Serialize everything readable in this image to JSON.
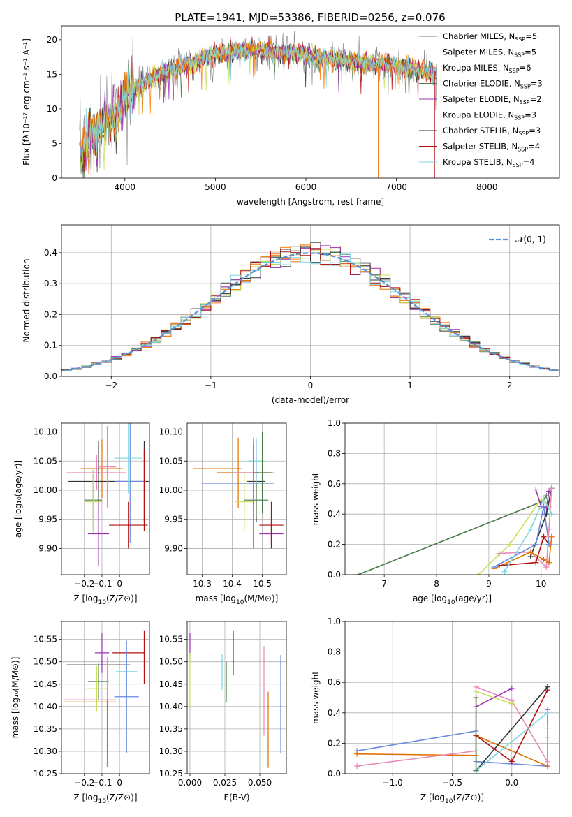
{
  "figure": {
    "title": "PLATE=1941, MJD=53386, FIBERID=0256, z=0.076"
  },
  "series_colors": [
    "#777777",
    "#ff7f0e",
    "#e07000",
    "#4a7a4a",
    "#9b30b0",
    "#c8e05a",
    "#333333",
    "#b01010",
    "#7fd6e0",
    "#6a8ae0",
    "#e98ab8"
  ],
  "chart_data": [
    {
      "id": "spectrum",
      "type": "line",
      "xlabel": "wavelength [Angstrom, rest frame]",
      "ylabel": "Flux [fλ10⁻¹⁷ erg cm⁻² s⁻¹ A⁻¹]",
      "xlim": [
        3300,
        8800
      ],
      "ylim": [
        0,
        22
      ],
      "xticks": [
        4000,
        5000,
        6000,
        7000,
        8000
      ],
      "yticks": [
        0,
        5,
        10,
        15,
        20
      ],
      "legend_position": "top-right",
      "series": [
        {
          "name": "Chabrier MILES, N_SSP=5",
          "label_main": "Chabrier MILES, N",
          "label_tail": "=5",
          "color": "#777777"
        },
        {
          "name": "Salpeter MILES, N_SSP=5",
          "label_main": "Salpeter MILES, N",
          "label_tail": "=5",
          "color": "#ff7f0e"
        },
        {
          "name": "Kroupa MILES, N_SSP=6",
          "label_main": "Kroupa MILES, N",
          "label_tail": "=6",
          "color": "#e07000"
        },
        {
          "name": "Chabrier ELODIE, N_SSP=3",
          "label_main": "Chabrier ELODIE, N",
          "label_tail": "=3",
          "color": "#4a7a4a"
        },
        {
          "name": "Salpeter ELODIE, N_SSP=2",
          "label_main": "Salpeter ELODIE, N",
          "label_tail": "=2",
          "color": "#9b30b0"
        },
        {
          "name": "Kroupa ELODIE, N_SSP=3",
          "label_main": "Kroupa ELODIE, N",
          "label_tail": "=3",
          "color": "#c8e05a"
        },
        {
          "name": "Chabrier STELIB, N_SSP=3",
          "label_main": "Chabrier STELIB, N",
          "label_tail": "=3",
          "color": "#333333"
        },
        {
          "name": "Salpeter STELIB, N_SSP=4",
          "label_main": "Salpeter STELIB, N",
          "label_tail": "=4",
          "color": "#b01010"
        },
        {
          "name": "Kroupa STELIB, N_SSP=4",
          "label_main": "Kroupa STELIB, N",
          "label_tail": "=4",
          "color": "#7fd6e0"
        }
      ],
      "continuum": {
        "x": [
          3500,
          3700,
          3900,
          4000,
          4100,
          4300,
          4500,
          4700,
          4900,
          5100,
          5300,
          5500,
          5700,
          5900,
          6100,
          6300,
          6500,
          6700,
          6900,
          7100,
          7300,
          7450
        ],
        "y": [
          3.5,
          7,
          9,
          12,
          13,
          14.5,
          15.5,
          16.5,
          17.5,
          18,
          18.5,
          18.5,
          18,
          18,
          17.5,
          17,
          16.8,
          16.5,
          16.5,
          16,
          15.5,
          15
        ]
      },
      "lines": [
        {
          "x": 6800,
          "y": [
            0,
            16
          ]
        },
        {
          "x": 7420,
          "y": [
            0,
            15.5
          ]
        }
      ]
    },
    {
      "id": "residuals",
      "type": "line",
      "xlabel": "(data-model)/error",
      "ylabel": "Normed distribution",
      "xlim": [
        -2.5,
        2.5
      ],
      "ylim": [
        0,
        0.49
      ],
      "xticks": [
        -2,
        -1,
        0,
        1,
        2
      ],
      "yticks": [
        0.0,
        0.1,
        0.2,
        0.3,
        0.4
      ],
      "grid": true,
      "legend_position": "top-right",
      "reference": {
        "name": "𝒩(0, 1)",
        "color": "#5b8fd6",
        "mean": 0,
        "sigma": 1
      }
    },
    {
      "id": "age-vs-Z",
      "type": "scatter",
      "xlabel_main": "Z [log",
      "xlabel_sub": "10",
      "xlabel_tail": "(Z/Z⊙)]",
      "ylabel": "age  [log₁₀(age/yr)]",
      "xlim": [
        -0.33,
        0.17
      ],
      "ylim": [
        9.855,
        10.115
      ],
      "xticks": [
        -0.2,
        -0.1,
        0.0
      ],
      "yticks": [
        9.9,
        9.95,
        10.0,
        10.05,
        10.1
      ],
      "grid": true,
      "points": [
        {
          "x": -0.1,
          "y": 10.037,
          "xerr": 0.12,
          "yerr": 0.05,
          "color": "#e07000"
        },
        {
          "x": -0.13,
          "y": 10.03,
          "xerr": 0.17,
          "yerr": 0.03,
          "color": "#e98ab8"
        },
        {
          "x": 0.14,
          "y": 10.015,
          "xerr": 0.08,
          "yerr": 0.07,
          "color": "#333333"
        },
        {
          "x": -0.12,
          "y": 10.015,
          "xerr": 0.17,
          "yerr": 0.07,
          "color": "#333333"
        },
        {
          "x": 0.06,
          "y": 10.015,
          "xerr": 0.09,
          "yerr": 0.105,
          "color": "#6a8ae0"
        },
        {
          "x": 0.05,
          "y": 10.055,
          "xerr": 0.08,
          "yerr": 0.06,
          "color": "#7fd6e0"
        },
        {
          "x": -0.07,
          "y": 10.04,
          "xerr": 0.05,
          "yerr": 0.07,
          "color": "#e98ab8"
        },
        {
          "x": -0.15,
          "y": 9.983,
          "xerr": 0.05,
          "yerr": 0.05,
          "color": "#4a7a4a"
        },
        {
          "x": -0.15,
          "y": 9.98,
          "xerr": 0.05,
          "yerr": 0.055,
          "color": "#c8e05a"
        },
        {
          "x": -0.12,
          "y": 9.925,
          "xerr": 0.06,
          "yerr": 0.055,
          "color": "#9b30b0"
        },
        {
          "x": 0.05,
          "y": 9.94,
          "xerr": 0.11,
          "yerr": 0.04,
          "color": "#b01010"
        },
        {
          "x": 0.14,
          "y": 10.0,
          "xerr": 0.0,
          "yerr": 0.07,
          "color": "#b01010"
        }
      ]
    },
    {
      "id": "age-vs-mass",
      "type": "scatter",
      "xlabel_main": "mass [log",
      "xlabel_sub": "10",
      "xlabel_tail": "(M/M⊙)]",
      "xlim": [
        10.25,
        10.58
      ],
      "ylim": [
        9.855,
        10.115
      ],
      "xticks": [
        10.3,
        10.4,
        10.5
      ],
      "yticks": [
        9.9,
        9.95,
        10.0,
        10.05,
        10.1
      ],
      "grid": true,
      "points": [
        {
          "x": 10.35,
          "y": 10.037,
          "xerr": 0.08,
          "yerr": 0.0,
          "color": "#e07000"
        },
        {
          "x": 10.42,
          "y": 10.012,
          "xerr": 0.12,
          "yerr": 0.0,
          "color": "#6a8ae0"
        },
        {
          "x": 10.42,
          "y": 10.03,
          "xerr": 0.07,
          "yerr": 0.06,
          "color": "#e07000"
        },
        {
          "x": 10.47,
          "y": 10.03,
          "xerr": 0.07,
          "yerr": 0.06,
          "color": "#e98ab8"
        },
        {
          "x": 10.48,
          "y": 10.015,
          "xerr": 0.03,
          "yerr": 0.07,
          "color": "#333333"
        },
        {
          "x": 10.48,
          "y": 10.05,
          "xerr": 0.03,
          "yerr": 0.04,
          "color": "#7fd6e0"
        },
        {
          "x": 10.5,
          "y": 10.03,
          "xerr": 0.03,
          "yerr": 0.07,
          "color": "#4a7a4a"
        },
        {
          "x": 10.44,
          "y": 9.98,
          "xerr": 0.03,
          "yerr": 0.05,
          "color": "#c8e05a"
        },
        {
          "x": 10.48,
          "y": 9.983,
          "xerr": 0.04,
          "yerr": 0.03,
          "color": "#4a7a4a"
        },
        {
          "x": 10.53,
          "y": 9.925,
          "xerr": 0.04,
          "yerr": 0.02,
          "color": "#9b30b0"
        },
        {
          "x": 10.53,
          "y": 9.94,
          "xerr": 0.04,
          "yerr": 0.04,
          "color": "#b01010"
        },
        {
          "x": 10.47,
          "y": 9.99,
          "xerr": 0.0,
          "yerr": 0.09,
          "color": "#6a8ae0"
        }
      ]
    },
    {
      "id": "mass-weight-vs-age",
      "type": "line",
      "xlabel_main": "age  [log",
      "xlabel_sub": "10",
      "xlabel_tail": "(age/yr)]",
      "ylabel": "mass weight",
      "xlim": [
        6.25,
        10.35
      ],
      "ylim": [
        0,
        1.0
      ],
      "xticks": [
        7,
        8,
        9,
        10
      ],
      "yticks": [
        0.0,
        0.2,
        0.4,
        0.6,
        0.8,
        1.0
      ],
      "grid": true,
      "series": [
        {
          "color": "#4a7a4a",
          "x": [
            6.5,
            10.0,
            10.1
          ],
          "y": [
            0.0,
            0.48,
            0.52
          ]
        },
        {
          "color": "#c8e05a",
          "x": [
            8.8,
            9.4,
            10.0,
            10.15
          ],
          "y": [
            0.0,
            0.2,
            0.5,
            0.45
          ]
        },
        {
          "color": "#333333",
          "x": [
            9.8,
            10.1,
            10.2
          ],
          "y": [
            0.12,
            0.4,
            0.57
          ]
        },
        {
          "color": "#9b30b0",
          "x": [
            9.9,
            10.0,
            10.1,
            10.15
          ],
          "y": [
            0.56,
            0.45,
            0.44,
            0.55
          ]
        },
        {
          "color": "#e98ab8",
          "x": [
            9.2,
            9.8,
            10.1,
            10.2,
            10.15
          ],
          "y": [
            0.14,
            0.15,
            0.05,
            0.57,
            0.3
          ]
        },
        {
          "color": "#e07000",
          "x": [
            9.1,
            9.8,
            10.05,
            10.15,
            10.2
          ],
          "y": [
            0.04,
            0.15,
            0.1,
            0.08,
            0.25
          ]
        },
        {
          "color": "#b01010",
          "x": [
            9.2,
            9.9,
            10.05,
            10.15
          ],
          "y": [
            0.06,
            0.08,
            0.25,
            0.2
          ]
        },
        {
          "color": "#6a8ae0",
          "x": [
            9.1,
            9.9,
            10.05,
            10.15
          ],
          "y": [
            0.05,
            0.2,
            0.45,
            0.2
          ]
        },
        {
          "color": "#7fd6e0",
          "x": [
            9.3,
            9.8,
            10.05,
            10.2
          ],
          "y": [
            0.02,
            0.3,
            0.5,
            0.4
          ]
        }
      ]
    },
    {
      "id": "mass-vs-Z",
      "type": "scatter",
      "xlabel_main": "Z [log",
      "xlabel_sub": "10",
      "xlabel_tail": "(Z/Z⊙)]",
      "ylabel": "mass [log₁₀(M/M⊙)]",
      "xlim": [
        -0.33,
        0.17
      ],
      "ylim": [
        10.25,
        10.59
      ],
      "xticks": [
        -0.2,
        -0.1,
        0.0
      ],
      "yticks": [
        10.25,
        10.3,
        10.35,
        10.4,
        10.45,
        10.5,
        10.55
      ],
      "grid": true,
      "points": [
        {
          "x": -0.12,
          "y": 10.493,
          "xerr": 0.18,
          "yerr": 0.0,
          "color": "#333333"
        },
        {
          "x": -0.1,
          "y": 10.52,
          "xerr": 0.04,
          "yerr": 0.045,
          "color": "#9b30b0"
        },
        {
          "x": 0.05,
          "y": 10.52,
          "xerr": 0.09,
          "yerr": 0.0,
          "color": "#b01010"
        },
        {
          "x": 0.14,
          "y": 10.51,
          "xerr": 0.0,
          "yerr": 0.06,
          "color": "#b01010"
        },
        {
          "x": 0.04,
          "y": 10.478,
          "xerr": 0.06,
          "yerr": 0.04,
          "color": "#7fd6e0"
        },
        {
          "x": -0.12,
          "y": 10.456,
          "xerr": 0.06,
          "yerr": 0.04,
          "color": "#4a7a4a"
        },
        {
          "x": -0.13,
          "y": 10.44,
          "xerr": 0.06,
          "yerr": 0.05,
          "color": "#c8e05a"
        },
        {
          "x": 0.04,
          "y": 10.422,
          "xerr": 0.07,
          "yerr": 0.125,
          "color": "#6a8ae0"
        },
        {
          "x": -0.17,
          "y": 10.415,
          "xerr": 0.15,
          "yerr": 0.0,
          "color": "#e98ab8"
        },
        {
          "x": -0.17,
          "y": 10.41,
          "xerr": 0.15,
          "yerr": 0.0,
          "color": "#e07000"
        },
        {
          "x": -0.07,
          "y": 10.45,
          "xerr": 0.0,
          "yerr": 0.06,
          "color": "#e98ab8"
        },
        {
          "x": -0.07,
          "y": 10.34,
          "xerr": 0.0,
          "yerr": 0.075,
          "color": "#e07000"
        }
      ]
    },
    {
      "id": "mass-vs-EBV",
      "type": "scatter",
      "xlabel": "E(B-V)",
      "xlim": [
        -0.002,
        0.069
      ],
      "ylim": [
        10.25,
        10.59
      ],
      "xticks": [
        0.0,
        0.025,
        0.05
      ],
      "xticklabels": [
        "0.000",
        "0.025",
        "0.050"
      ],
      "yticks": [
        10.25,
        10.3,
        10.35,
        10.4,
        10.45,
        10.5,
        10.55
      ],
      "grid": true,
      "points": [
        {
          "x": 0.0,
          "y": 10.535,
          "xerr": 0.0,
          "yerr": 0.03,
          "color": "#9b30b0"
        },
        {
          "x": 0.0,
          "y": 10.46,
          "xerr": 0.0,
          "yerr": 0.06,
          "color": "#c8e05a"
        },
        {
          "x": 0.023,
          "y": 10.477,
          "xerr": 0.0,
          "yerr": 0.04,
          "color": "#7fd6e0"
        },
        {
          "x": 0.026,
          "y": 10.455,
          "xerr": 0.0,
          "yerr": 0.045,
          "color": "#4a7a4a"
        },
        {
          "x": 0.031,
          "y": 10.52,
          "xerr": 0.0,
          "yerr": 0.05,
          "color": "#b01010"
        },
        {
          "x": 0.053,
          "y": 10.435,
          "xerr": 0.0,
          "yerr": 0.1,
          "color": "#e98ab8"
        },
        {
          "x": 0.056,
          "y": 10.348,
          "xerr": 0.0,
          "yerr": 0.085,
          "color": "#e07000"
        },
        {
          "x": 0.065,
          "y": 10.405,
          "xerr": 0.0,
          "yerr": 0.11,
          "color": "#6a8ae0"
        }
      ]
    },
    {
      "id": "mass-weight-vs-Z",
      "type": "line",
      "xlabel_main": "Z [log",
      "xlabel_sub": "10",
      "xlabel_tail": "(Z/Z⊙)]",
      "ylabel": "mass weight",
      "xlim": [
        -1.4,
        0.4
      ],
      "ylim": [
        0,
        1.0
      ],
      "xticks": [
        -1.0,
        -0.5,
        0.0
      ],
      "xticklabels": [
        "−1.0",
        "−0.5",
        "0.0"
      ],
      "yticks": [
        0.0,
        0.2,
        0.4,
        0.6,
        0.8,
        1.0
      ],
      "grid": true,
      "series": [
        {
          "color": "#6a8ae0",
          "x": [
            -1.3,
            -0.3,
            -0.3,
            0.3,
            0.3
          ],
          "y": [
            0.15,
            0.28,
            0.08,
            0.05,
            0.42
          ]
        },
        {
          "color": "#e07000",
          "x": [
            -1.3,
            -0.3,
            -0.3,
            0.3,
            0.3
          ],
          "y": [
            0.13,
            0.12,
            0.25,
            0.05,
            0.24
          ]
        },
        {
          "color": "#e98ab8",
          "x": [
            -1.3,
            -0.3,
            -0.3,
            0.0,
            0.3,
            0.3
          ],
          "y": [
            0.05,
            0.15,
            0.57,
            0.48,
            0.08,
            0.3
          ]
        },
        {
          "color": "#9b30b0",
          "x": [
            -0.3,
            0.0
          ],
          "y": [
            0.44,
            0.56
          ]
        },
        {
          "color": "#c8e05a",
          "x": [
            -0.3,
            0.0
          ],
          "y": [
            0.54,
            0.46
          ]
        },
        {
          "color": "#333333",
          "x": [
            -0.3,
            0.3
          ],
          "y": [
            0.02,
            0.57
          ]
        },
        {
          "color": "#b01010",
          "x": [
            -0.3,
            0.0,
            0.3
          ],
          "y": [
            0.25,
            0.08,
            0.55
          ]
        },
        {
          "color": "#7fd6e0",
          "x": [
            -0.3,
            0.3
          ],
          "y": [
            0.02,
            0.4
          ]
        },
        {
          "color": "#4a7a4a",
          "x": [
            -0.3,
            -0.3
          ],
          "y": [
            0.02,
            0.5
          ]
        }
      ]
    }
  ]
}
